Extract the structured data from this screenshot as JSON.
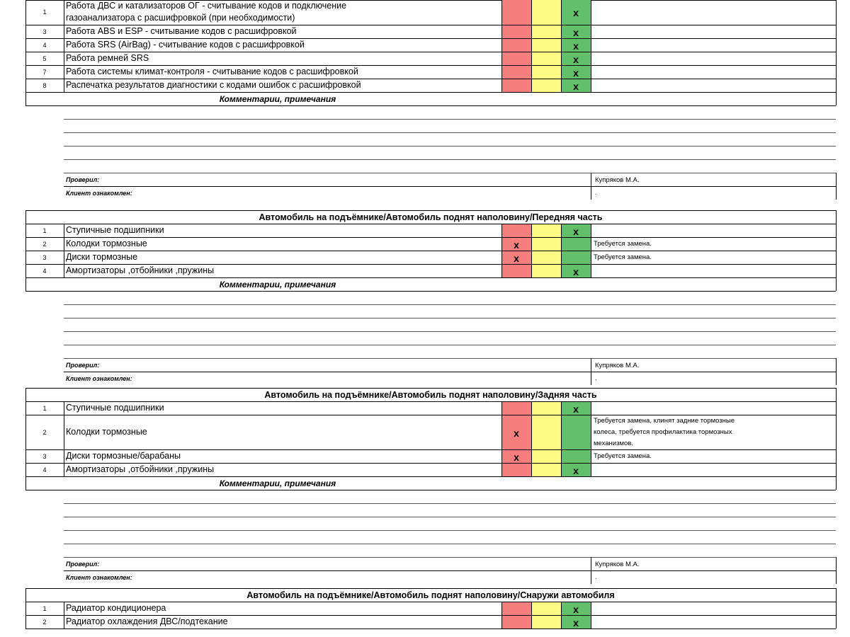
{
  "colors": {
    "red": "#f47f7c",
    "yellow": "#fffa84",
    "green": "#63c06a",
    "grid": "#000000"
  },
  "mark_symbol": "x",
  "comments_title": "Комментарии, примечания",
  "checked_label": "Проверил:",
  "client_label": "Клиент ознакомлен:",
  "inspector_name": "Купряков М.А.",
  "client_value": ".",
  "sections": [
    {
      "title": "",
      "items": [
        {
          "num": "1",
          "lines": [
            "Работа ДВС и катализаторов ОГ - считывание кодов и подключение",
            "газоанализатора с расшифровкой (при необходимости)"
          ],
          "mark": "green",
          "note": []
        },
        {
          "num": "3",
          "lines": [
            "Работа ABS и ESP - считывание кодов с расшифровкой"
          ],
          "mark": "green",
          "note": []
        },
        {
          "num": "4",
          "lines": [
            "Работа SRS (AirBag) - считывание кодов с расшифровкой"
          ],
          "mark": "green",
          "note": []
        },
        {
          "num": "5",
          "lines": [
            "Работа ремней SRS"
          ],
          "mark": "green",
          "note": []
        },
        {
          "num": "7",
          "lines": [
            "Работа системы климат-контроля - считывание кодов с расшифровкой"
          ],
          "mark": "green",
          "note": []
        },
        {
          "num": "8",
          "lines": [
            "Распечатка результатов диагностики с кодами ошибок с расшифровкой"
          ],
          "mark": "green",
          "note": []
        }
      ]
    },
    {
      "title": "Автомобиль на подъёмнике/Автомобиль поднят наполовину/Передняя часть",
      "items": [
        {
          "num": "1",
          "lines": [
            "Ступичные подшипники"
          ],
          "mark": "green",
          "note": []
        },
        {
          "num": "2",
          "lines": [
            "Колодки тормозные"
          ],
          "mark": "red",
          "note": [
            "Требуется замена."
          ]
        },
        {
          "num": "3",
          "lines": [
            "Диски тормозные"
          ],
          "mark": "red",
          "note": [
            "Требуется замена."
          ]
        },
        {
          "num": "4",
          "lines": [
            "Амортизаторы ,отбойники ,пружины"
          ],
          "mark": "green",
          "note": []
        }
      ]
    },
    {
      "title": "Автомобиль на подъёмнике/Автомобиль поднят наполовину/Задняя часть",
      "items": [
        {
          "num": "1",
          "lines": [
            "Ступичные подшипники"
          ],
          "mark": "green",
          "note": []
        },
        {
          "num": "2",
          "lines": [
            "Колодки тормозные"
          ],
          "mark": "red",
          "note": [
            "Требуется замена, клинят задние тормозные",
            "колеса, требуется профилактика тормозных",
            "механизмов."
          ]
        },
        {
          "num": "3",
          "lines": [
            "Диски тормозные/барабаны"
          ],
          "mark": "red",
          "note": [
            "Требуется замена."
          ]
        },
        {
          "num": "4",
          "lines": [
            "Амортизаторы ,отбойники ,пружины"
          ],
          "mark": "green",
          "note": []
        }
      ]
    },
    {
      "title": "Автомобиль на подъёмнике/Автомобиль поднят наполовину/Снаружи автомобиля",
      "items": [
        {
          "num": "1",
          "lines": [
            "Радиатор кондиционера"
          ],
          "mark": "green",
          "note": []
        },
        {
          "num": "2",
          "lines": [
            "Радиатор охлаждения ДВС/подтекание"
          ],
          "mark": "green",
          "note": []
        }
      ]
    }
  ]
}
